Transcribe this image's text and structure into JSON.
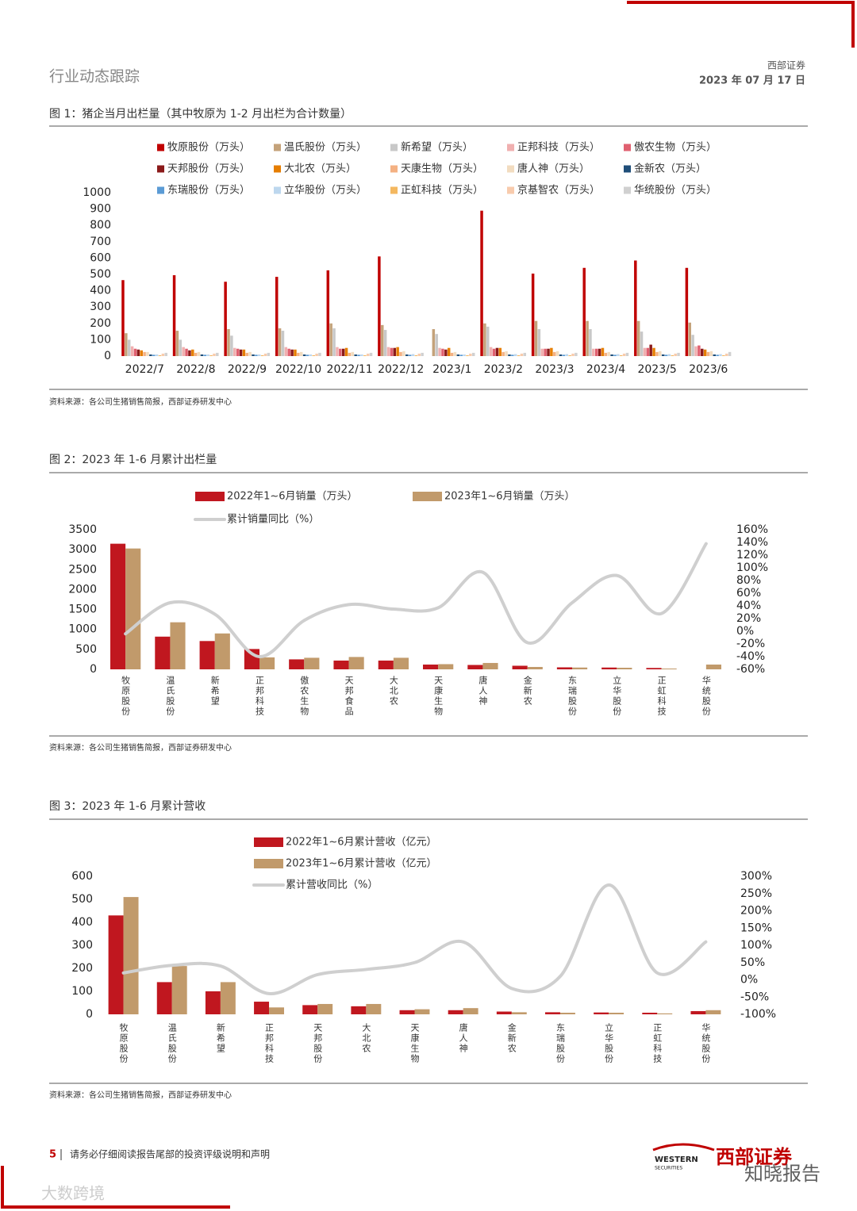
{
  "header": {
    "section": "行业动态跟踪",
    "company": "西部证券",
    "date": "2023 年 07 月 17 日"
  },
  "chart_data": [
    {
      "type": "bar",
      "title": "图 1：猪企当月出栏量（其中牧原为 1-2 月出栏为合计数量）",
      "source": "资料来源：各公司生猪销售简报，西部证券研发中心",
      "categories": [
        "2022/7",
        "2022/8",
        "2022/9",
        "2022/10",
        "2022/11",
        "2022/12",
        "2023/1",
        "2023/2",
        "2023/3",
        "2023/4",
        "2023/5",
        "2023/6"
      ],
      "ylim": [
        0,
        1000
      ],
      "yticks": [
        0,
        100,
        200,
        300,
        400,
        500,
        600,
        700,
        800,
        900,
        1000
      ],
      "grid": false,
      "series": [
        {
          "name": "牧原股份（万头）",
          "color": "#c00000",
          "values": [
            465,
            495,
            455,
            485,
            525,
            610,
            null,
            890,
            505,
            540,
            585,
            540
          ]
        },
        {
          "name": "温氏股份（万头）",
          "color": "#c4a27a",
          "values": [
            140,
            155,
            165,
            170,
            200,
            190,
            165,
            200,
            215,
            215,
            215,
            205
          ]
        },
        {
          "name": "新希望（万头）",
          "color": "#c8c8c8",
          "values": [
            100,
            100,
            125,
            155,
            170,
            160,
            135,
            180,
            165,
            165,
            150,
            130
          ]
        },
        {
          "name": "正邦科技（万头）",
          "color": "#f0b0b0",
          "values": [
            60,
            55,
            50,
            55,
            55,
            55,
            50,
            55,
            45,
            45,
            50,
            60
          ]
        },
        {
          "name": "傲农生物（万头）",
          "color": "#e06070",
          "values": [
            45,
            45,
            45,
            45,
            45,
            50,
            45,
            45,
            45,
            45,
            50,
            65
          ]
        },
        {
          "name": "天邦股份（万头）",
          "color": "#8b1a1a",
          "values": [
            40,
            35,
            40,
            40,
            45,
            50,
            40,
            50,
            45,
            45,
            70,
            45
          ]
        },
        {
          "name": "大北农（万头）",
          "color": "#e67e00",
          "values": [
            35,
            40,
            40,
            40,
            50,
            55,
            50,
            50,
            50,
            50,
            50,
            40
          ]
        },
        {
          "name": "天康生物（万头）",
          "color": "#f4b183",
          "values": [
            25,
            20,
            20,
            20,
            20,
            25,
            20,
            25,
            25,
            20,
            25,
            25
          ]
        },
        {
          "name": "唐人神（万头）",
          "color": "#f2dcc0",
          "values": [
            25,
            25,
            25,
            25,
            25,
            30,
            25,
            30,
            30,
            25,
            30,
            30
          ]
        },
        {
          "name": "金新农（万头）",
          "color": "#1f4e79",
          "values": [
            10,
            10,
            10,
            10,
            10,
            10,
            10,
            10,
            10,
            10,
            10,
            10
          ]
        },
        {
          "name": "东瑞股份（万头）",
          "color": "#5b9bd5",
          "values": [
            8,
            8,
            8,
            8,
            8,
            8,
            8,
            8,
            8,
            8,
            8,
            8
          ]
        },
        {
          "name": "立华股份（万头）",
          "color": "#bdd7ee",
          "values": [
            10,
            10,
            10,
            10,
            10,
            12,
            10,
            12,
            12,
            12,
            12,
            12
          ]
        },
        {
          "name": "正虹科技（万头）",
          "color": "#f4b860",
          "values": [
            5,
            5,
            5,
            5,
            5,
            5,
            5,
            5,
            5,
            5,
            5,
            5
          ]
        },
        {
          "name": "京基智农（万头）",
          "color": "#f8cbad",
          "values": [
            15,
            15,
            15,
            15,
            15,
            15,
            15,
            15,
            15,
            15,
            15,
            15
          ]
        },
        {
          "name": "华统股份（万头）",
          "color": "#d0d0d0",
          "values": [
            20,
            20,
            20,
            20,
            20,
            20,
            20,
            20,
            20,
            20,
            20,
            25
          ]
        }
      ]
    },
    {
      "type": "bar",
      "title": "图 2：2023 年 1-6 月累计出栏量",
      "source": "资料来源：各公司生猪销售简报，西部证券研发中心",
      "categories": [
        "牧原股份",
        "温氏股份",
        "新希望",
        "正邦科技",
        "傲农生物",
        "天邦食品",
        "大北农",
        "天康生物",
        "唐人神",
        "金新农",
        "东瑞股份",
        "立华股份",
        "正虹科技",
        "华统股份"
      ],
      "ylim": [
        0,
        3500
      ],
      "yticks": [
        0,
        500,
        1000,
        1500,
        2000,
        2500,
        3000,
        3500
      ],
      "y2lim": [
        -60,
        160
      ],
      "y2ticks": [
        {
          "value": -60,
          "label": "-60%"
        },
        {
          "value": -40,
          "label": "-40%"
        },
        {
          "value": -20,
          "label": "-20%"
        },
        {
          "value": 0,
          "label": "0%"
        },
        {
          "value": 20,
          "label": "20%"
        },
        {
          "value": 40,
          "label": "40%"
        },
        {
          "value": 60,
          "label": "60%"
        },
        {
          "value": 80,
          "label": "80%"
        },
        {
          "value": 100,
          "label": "100%"
        },
        {
          "value": 120,
          "label": "120%"
        },
        {
          "value": 140,
          "label": "140%"
        },
        {
          "value": 160,
          "label": "160%"
        }
      ],
      "grid": false,
      "series": [
        {
          "name": "2022年1~6月销量（万头）",
          "color": "#c0171f",
          "values": [
            3150,
            820,
            710,
            510,
            250,
            220,
            220,
            120,
            110,
            90,
            50,
            45,
            35,
            null
          ]
        },
        {
          "name": "2023年1~6月销量（万头）",
          "color": "#c19a6b",
          "values": [
            3030,
            1180,
            900,
            300,
            290,
            310,
            290,
            130,
            160,
            60,
            45,
            40,
            20,
            120
          ]
        },
        {
          "name": "累计销量同比（%）",
          "color": "#cfcfcf",
          "type": "line",
          "axis": "y2",
          "values": [
            -4,
            45,
            27,
            -40,
            17,
            42,
            35,
            37,
            93,
            -18,
            45,
            88,
            28,
            138
          ]
        }
      ]
    },
    {
      "type": "bar",
      "title": "图 3：2023 年 1-6 月累计营收",
      "source": "资料来源：各公司生猪销售简报，西部证券研发中心",
      "categories": [
        "牧原股份",
        "温氏股份",
        "新希望",
        "正邦科技",
        "天邦股份",
        "大北农",
        "天康生物",
        "唐人神",
        "金新农",
        "东瑞股份",
        "立华股份",
        "正虹科技",
        "华统股份"
      ],
      "ylim": [
        0,
        600
      ],
      "yticks": [
        0,
        100,
        200,
        300,
        400,
        500,
        600
      ],
      "y2lim": [
        -100,
        300
      ],
      "y2ticks": [
        {
          "value": -100,
          "label": "-100%"
        },
        {
          "value": -50,
          "label": "-50%"
        },
        {
          "value": 0,
          "label": "0%"
        },
        {
          "value": 50,
          "label": "50%"
        },
        {
          "value": 100,
          "label": "100%"
        },
        {
          "value": 150,
          "label": "150%"
        },
        {
          "value": 200,
          "label": "200%"
        },
        {
          "value": 250,
          "label": "250%"
        },
        {
          "value": 300,
          "label": "300%"
        }
      ],
      "grid": false,
      "series": [
        {
          "name": "2022年1~6月累计营收（亿元）",
          "color": "#c0171f",
          "values": [
            430,
            140,
            100,
            55,
            40,
            35,
            18,
            18,
            12,
            9,
            8,
            7,
            14
          ]
        },
        {
          "name": "2023年1~6月累计营收（亿元）",
          "color": "#c19a6b",
          "values": [
            510,
            210,
            140,
            30,
            45,
            45,
            22,
            27,
            9,
            7,
            7,
            4,
            18
          ]
        },
        {
          "name": "累计营收同比（%）",
          "color": "#cfcfcf",
          "type": "line",
          "axis": "y2",
          "values": [
            20,
            42,
            40,
            -40,
            15,
            30,
            50,
            110,
            -25,
            10,
            275,
            20,
            110
          ]
        }
      ]
    }
  ],
  "footer": {
    "page": "5",
    "notice": "请务必仔细阅读报告尾部的投资评级说明和声明",
    "logo_en": "WESTERN",
    "logo_en_sub": "SECURITIES",
    "logo_cn": "西部证券"
  },
  "watermarks": [
    "知晓报告",
    "大数跨境"
  ]
}
